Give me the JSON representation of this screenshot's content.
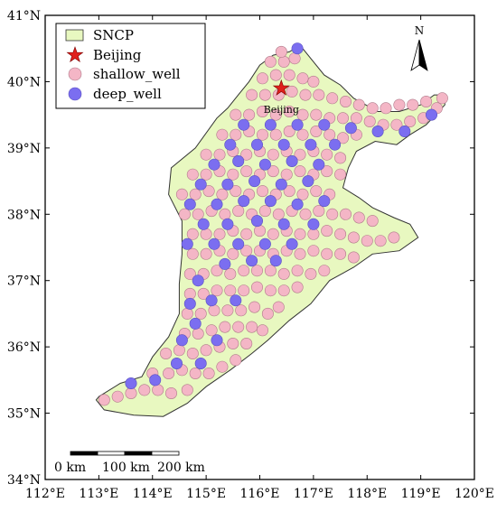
{
  "legend": {
    "items": [
      {
        "label": "SNCP",
        "kind": "region",
        "color": "#e8f8c0"
      },
      {
        "label": "Beijing",
        "kind": "star",
        "color": "#e0201c"
      },
      {
        "label": "shallow_well",
        "kind": "circle",
        "color": "#f4b6c6"
      },
      {
        "label": "deep_well",
        "kind": "circle",
        "color": "#7b6ef0"
      }
    ]
  },
  "north_arrow": {
    "label": "N"
  },
  "city_label": "Beijing",
  "scale_bar": {
    "labels": [
      "0 km",
      "100 km",
      "200 km"
    ]
  },
  "axes": {
    "x_ticks": [
      "112°E",
      "113°E",
      "114°E",
      "115°E",
      "116°E",
      "117°E",
      "118°E",
      "119°E",
      "120°E"
    ],
    "y_ticks": [
      "34°N",
      "35°N",
      "36°N",
      "37°N",
      "38°N",
      "39°N",
      "40°N",
      "41°N"
    ],
    "lon_range": [
      112,
      120
    ],
    "lat_range": [
      34,
      41
    ]
  },
  "colors": {
    "region_fill": "#e8f8c0",
    "region_stroke": "#333333",
    "shallow_fill": "#f4b6c6",
    "shallow_stroke": "#b07a8a",
    "deep_fill": "#7b6ef0",
    "deep_stroke": "#5a50c0",
    "star": "#e0201c"
  },
  "chart_data": {
    "type": "scatter",
    "x_unit": "longitude (°E)",
    "y_unit": "latitude (°N)",
    "xlim": [
      112,
      120
    ],
    "ylim": [
      34,
      41
    ],
    "beijing": {
      "lon": 116.4,
      "lat": 39.9
    },
    "region_outline": [
      [
        113.0,
        35.25
      ],
      [
        113.4,
        35.45
      ],
      [
        113.8,
        35.55
      ],
      [
        114.0,
        35.85
      ],
      [
        114.3,
        36.15
      ],
      [
        114.5,
        36.5
      ],
      [
        114.5,
        36.95
      ],
      [
        114.55,
        37.4
      ],
      [
        114.55,
        37.9
      ],
      [
        114.3,
        38.3
      ],
      [
        114.35,
        38.7
      ],
      [
        114.8,
        39.0
      ],
      [
        115.2,
        39.45
      ],
      [
        115.4,
        39.6
      ],
      [
        115.6,
        39.8
      ],
      [
        115.8,
        40.0
      ],
      [
        116.0,
        40.25
      ],
      [
        116.25,
        40.4
      ],
      [
        116.55,
        40.45
      ],
      [
        116.75,
        40.55
      ],
      [
        117.0,
        40.3
      ],
      [
        117.2,
        40.1
      ],
      [
        117.5,
        39.95
      ],
      [
        117.75,
        39.75
      ],
      [
        118.2,
        39.55
      ],
      [
        118.6,
        39.55
      ],
      [
        119.0,
        39.65
      ],
      [
        119.25,
        39.8
      ],
      [
        119.45,
        39.8
      ],
      [
        119.45,
        39.65
      ],
      [
        119.1,
        39.35
      ],
      [
        118.8,
        39.2
      ],
      [
        118.55,
        39.05
      ],
      [
        118.15,
        39.1
      ],
      [
        117.8,
        38.95
      ],
      [
        117.65,
        38.7
      ],
      [
        117.55,
        38.4
      ],
      [
        117.85,
        38.25
      ],
      [
        118.1,
        38.1
      ],
      [
        118.5,
        37.95
      ],
      [
        118.8,
        37.85
      ],
      [
        118.95,
        37.65
      ],
      [
        118.6,
        37.45
      ],
      [
        118.1,
        37.4
      ],
      [
        117.75,
        37.2
      ],
      [
        117.3,
        37.0
      ],
      [
        116.95,
        36.65
      ],
      [
        116.55,
        36.4
      ],
      [
        116.15,
        36.1
      ],
      [
        115.85,
        35.9
      ],
      [
        115.45,
        35.65
      ],
      [
        115.0,
        35.4
      ],
      [
        114.65,
        35.15
      ],
      [
        114.2,
        34.95
      ],
      [
        113.65,
        34.97
      ],
      [
        113.1,
        35.05
      ],
      [
        112.95,
        35.2
      ]
    ],
    "series": [
      {
        "name": "shallow_well",
        "points": [
          [
            113.1,
            35.2
          ],
          [
            113.35,
            35.25
          ],
          [
            113.6,
            35.3
          ],
          [
            113.85,
            35.35
          ],
          [
            114.1,
            35.35
          ],
          [
            114.35,
            35.3
          ],
          [
            114.65,
            35.35
          ],
          [
            114.0,
            35.6
          ],
          [
            114.3,
            35.6
          ],
          [
            114.55,
            35.65
          ],
          [
            114.8,
            35.6
          ],
          [
            115.05,
            35.6
          ],
          [
            115.3,
            35.7
          ],
          [
            115.55,
            35.8
          ],
          [
            114.25,
            35.9
          ],
          [
            114.5,
            35.95
          ],
          [
            114.75,
            35.9
          ],
          [
            115.0,
            35.95
          ],
          [
            115.25,
            36.0
          ],
          [
            115.5,
            36.05
          ],
          [
            115.75,
            36.05
          ],
          [
            114.6,
            36.2
          ],
          [
            114.85,
            36.2
          ],
          [
            115.1,
            36.25
          ],
          [
            115.35,
            36.3
          ],
          [
            115.6,
            36.3
          ],
          [
            115.85,
            36.3
          ],
          [
            116.05,
            36.25
          ],
          [
            114.65,
            36.5
          ],
          [
            114.9,
            36.5
          ],
          [
            115.15,
            36.55
          ],
          [
            115.4,
            36.55
          ],
          [
            115.65,
            36.55
          ],
          [
            115.9,
            36.6
          ],
          [
            116.15,
            36.5
          ],
          [
            116.35,
            36.6
          ],
          [
            114.7,
            36.8
          ],
          [
            114.95,
            36.8
          ],
          [
            115.2,
            36.85
          ],
          [
            115.45,
            36.85
          ],
          [
            115.7,
            36.85
          ],
          [
            115.95,
            36.9
          ],
          [
            116.2,
            36.85
          ],
          [
            116.45,
            36.85
          ],
          [
            116.7,
            36.9
          ],
          [
            114.7,
            37.1
          ],
          [
            114.95,
            37.1
          ],
          [
            115.2,
            37.15
          ],
          [
            115.45,
            37.1
          ],
          [
            115.7,
            37.15
          ],
          [
            115.95,
            37.15
          ],
          [
            116.2,
            37.15
          ],
          [
            116.45,
            37.1
          ],
          [
            116.7,
            37.15
          ],
          [
            116.95,
            37.1
          ],
          [
            117.2,
            37.15
          ],
          [
            114.75,
            37.4
          ],
          [
            115.0,
            37.4
          ],
          [
            115.25,
            37.45
          ],
          [
            115.5,
            37.4
          ],
          [
            115.75,
            37.45
          ],
          [
            116.0,
            37.45
          ],
          [
            116.25,
            37.4
          ],
          [
            116.5,
            37.45
          ],
          [
            116.75,
            37.4
          ],
          [
            117.0,
            37.45
          ],
          [
            117.25,
            37.4
          ],
          [
            117.5,
            37.4
          ],
          [
            117.75,
            37.35
          ],
          [
            114.75,
            37.7
          ],
          [
            115.0,
            37.7
          ],
          [
            115.25,
            37.7
          ],
          [
            115.5,
            37.75
          ],
          [
            115.75,
            37.7
          ],
          [
            116.0,
            37.75
          ],
          [
            116.25,
            37.7
          ],
          [
            116.5,
            37.75
          ],
          [
            116.75,
            37.7
          ],
          [
            117.0,
            37.7
          ],
          [
            117.25,
            37.75
          ],
          [
            117.5,
            37.7
          ],
          [
            117.75,
            37.65
          ],
          [
            118.0,
            37.6
          ],
          [
            118.25,
            37.6
          ],
          [
            118.5,
            37.65
          ],
          [
            114.6,
            38.0
          ],
          [
            114.85,
            38.0
          ],
          [
            115.1,
            38.05
          ],
          [
            115.35,
            38.0
          ],
          [
            115.6,
            38.05
          ],
          [
            115.85,
            38.0
          ],
          [
            116.1,
            38.05
          ],
          [
            116.35,
            38.0
          ],
          [
            116.6,
            38.05
          ],
          [
            116.85,
            38.0
          ],
          [
            117.1,
            38.05
          ],
          [
            117.35,
            38.0
          ],
          [
            117.6,
            38.0
          ],
          [
            117.85,
            37.95
          ],
          [
            118.1,
            37.9
          ],
          [
            114.55,
            38.3
          ],
          [
            114.8,
            38.3
          ],
          [
            115.05,
            38.35
          ],
          [
            115.3,
            38.3
          ],
          [
            115.55,
            38.35
          ],
          [
            115.8,
            38.3
          ],
          [
            116.05,
            38.35
          ],
          [
            116.3,
            38.3
          ],
          [
            116.55,
            38.35
          ],
          [
            116.8,
            38.3
          ],
          [
            117.05,
            38.35
          ],
          [
            117.3,
            38.3
          ],
          [
            114.75,
            38.6
          ],
          [
            115.0,
            38.6
          ],
          [
            115.25,
            38.65
          ],
          [
            115.5,
            38.6
          ],
          [
            115.75,
            38.65
          ],
          [
            116.0,
            38.6
          ],
          [
            116.25,
            38.65
          ],
          [
            116.5,
            38.6
          ],
          [
            116.75,
            38.65
          ],
          [
            117.0,
            38.6
          ],
          [
            117.25,
            38.65
          ],
          [
            117.5,
            38.6
          ],
          [
            115.0,
            38.9
          ],
          [
            115.25,
            38.9
          ],
          [
            115.5,
            38.95
          ],
          [
            115.75,
            38.9
          ],
          [
            116.0,
            38.95
          ],
          [
            116.25,
            38.9
          ],
          [
            116.5,
            38.95
          ],
          [
            116.75,
            38.9
          ],
          [
            117.0,
            38.95
          ],
          [
            117.25,
            38.9
          ],
          [
            117.5,
            38.85
          ],
          [
            115.3,
            39.2
          ],
          [
            115.55,
            39.2
          ],
          [
            115.8,
            39.25
          ],
          [
            116.05,
            39.2
          ],
          [
            116.3,
            39.2
          ],
          [
            116.55,
            39.25
          ],
          [
            116.8,
            39.2
          ],
          [
            117.05,
            39.25
          ],
          [
            117.3,
            39.2
          ],
          [
            117.55,
            39.15
          ],
          [
            117.8,
            39.2
          ],
          [
            115.55,
            39.5
          ],
          [
            115.8,
            39.5
          ],
          [
            116.05,
            39.55
          ],
          [
            116.3,
            39.5
          ],
          [
            116.55,
            39.55
          ],
          [
            116.8,
            39.5
          ],
          [
            117.05,
            39.5
          ],
          [
            117.3,
            39.45
          ],
          [
            117.55,
            39.45
          ],
          [
            117.8,
            39.45
          ],
          [
            118.05,
            39.4
          ],
          [
            118.3,
            39.35
          ],
          [
            118.55,
            39.35
          ],
          [
            118.8,
            39.4
          ],
          [
            119.05,
            39.45
          ],
          [
            119.3,
            39.6
          ],
          [
            115.85,
            39.8
          ],
          [
            116.1,
            39.8
          ],
          [
            116.35,
            39.8
          ],
          [
            116.6,
            39.85
          ],
          [
            116.85,
            39.8
          ],
          [
            117.1,
            39.8
          ],
          [
            117.35,
            39.75
          ],
          [
            117.6,
            39.7
          ],
          [
            117.85,
            39.65
          ],
          [
            118.1,
            39.6
          ],
          [
            118.35,
            39.6
          ],
          [
            118.6,
            39.65
          ],
          [
            118.85,
            39.65
          ],
          [
            119.1,
            39.7
          ],
          [
            119.4,
            39.75
          ],
          [
            116.05,
            40.05
          ],
          [
            116.3,
            40.1
          ],
          [
            116.55,
            40.1
          ],
          [
            116.8,
            40.05
          ],
          [
            117.0,
            40.0
          ],
          [
            116.2,
            40.3
          ],
          [
            116.45,
            40.3
          ],
          [
            116.65,
            40.35
          ],
          [
            116.4,
            40.45
          ]
        ]
      },
      {
        "name": "deep_well",
        "points": [
          [
            113.6,
            35.45
          ],
          [
            114.05,
            35.5
          ],
          [
            114.45,
            35.75
          ],
          [
            114.9,
            35.75
          ],
          [
            114.55,
            36.1
          ],
          [
            114.8,
            36.35
          ],
          [
            115.2,
            36.1
          ],
          [
            114.7,
            36.65
          ],
          [
            115.1,
            36.7
          ],
          [
            115.55,
            36.7
          ],
          [
            114.85,
            37.0
          ],
          [
            115.35,
            37.25
          ],
          [
            115.85,
            37.3
          ],
          [
            116.3,
            37.3
          ],
          [
            114.65,
            37.55
          ],
          [
            115.15,
            37.55
          ],
          [
            115.6,
            37.55
          ],
          [
            116.1,
            37.55
          ],
          [
            116.6,
            37.55
          ],
          [
            114.95,
            37.85
          ],
          [
            115.4,
            37.85
          ],
          [
            115.95,
            37.9
          ],
          [
            116.45,
            37.85
          ],
          [
            117.0,
            37.85
          ],
          [
            114.7,
            38.15
          ],
          [
            115.2,
            38.15
          ],
          [
            115.7,
            38.2
          ],
          [
            116.2,
            38.2
          ],
          [
            116.7,
            38.15
          ],
          [
            117.2,
            38.2
          ],
          [
            114.9,
            38.45
          ],
          [
            115.4,
            38.45
          ],
          [
            115.9,
            38.5
          ],
          [
            116.4,
            38.45
          ],
          [
            116.9,
            38.5
          ],
          [
            115.15,
            38.75
          ],
          [
            115.6,
            38.8
          ],
          [
            116.1,
            38.75
          ],
          [
            116.6,
            38.8
          ],
          [
            117.1,
            38.75
          ],
          [
            115.45,
            39.05
          ],
          [
            115.95,
            39.05
          ],
          [
            116.45,
            39.05
          ],
          [
            116.95,
            39.05
          ],
          [
            117.4,
            39.05
          ],
          [
            115.7,
            39.35
          ],
          [
            116.2,
            39.35
          ],
          [
            116.7,
            39.35
          ],
          [
            117.2,
            39.35
          ],
          [
            117.7,
            39.3
          ],
          [
            118.2,
            39.25
          ],
          [
            118.7,
            39.25
          ],
          [
            119.2,
            39.5
          ],
          [
            116.7,
            40.5
          ]
        ]
      }
    ]
  }
}
